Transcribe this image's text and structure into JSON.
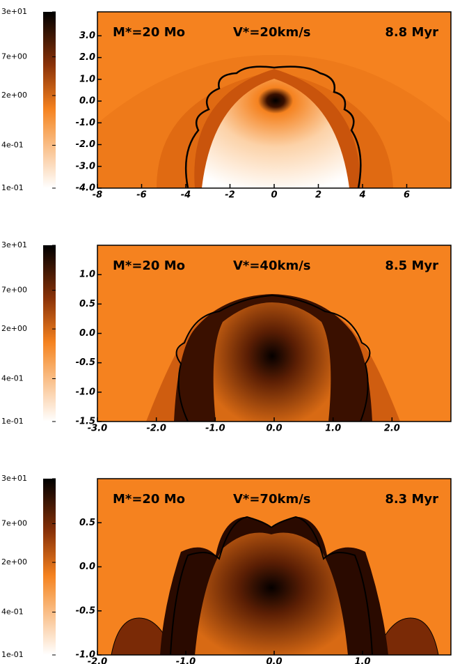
{
  "chart_data": [
    {
      "type": "image",
      "annotations": [
        "M*=20 Mo",
        "V*=20km/s",
        "8.8 Myr"
      ],
      "xlim": [
        -8,
        8
      ],
      "ylim": [
        -4,
        4.1
      ],
      "xticks": [
        -8,
        -6,
        -4,
        -2,
        0,
        2,
        4,
        6
      ],
      "yticks": [
        {
          "value": 3,
          "label": "3.0"
        },
        {
          "value": 2,
          "label": "2.0"
        },
        {
          "value": 1,
          "label": "1.0"
        },
        {
          "value": 0,
          "label": "0.0"
        },
        {
          "value": -1,
          "label": "-1.0"
        },
        {
          "value": -2,
          "label": "-2.0"
        },
        {
          "value": -3,
          "label": "-3.0"
        },
        {
          "value": -4,
          "label": "-4.0"
        }
      ],
      "clim": [
        0.1,
        30
      ],
      "cscale": "log",
      "cticks": [
        {
          "value": 30,
          "label": "3e+01"
        },
        {
          "value": 7,
          "label": "7e+00"
        },
        {
          "value": 2,
          "label": "2e+00"
        },
        {
          "value": 0.4,
          "label": "4e-01"
        },
        {
          "value": 0.1,
          "label": "1e-01"
        }
      ]
    },
    {
      "type": "image",
      "annotations": [
        "M*=20 Mo",
        "V*=40km/s",
        "8.5 Myr"
      ],
      "xlim": [
        -3,
        3
      ],
      "ylim": [
        -1.5,
        1.5
      ],
      "xticks": [
        {
          "value": -3,
          "label": "-3.0"
        },
        {
          "value": -2,
          "label": "-2.0"
        },
        {
          "value": -1,
          "label": "-1.0"
        },
        {
          "value": 0,
          "label": "0.0"
        },
        {
          "value": 1,
          "label": "1.0"
        },
        {
          "value": 2,
          "label": "2.0"
        }
      ],
      "yticks": [
        {
          "value": 1,
          "label": "1.0"
        },
        0.5,
        {
          "value": 0,
          "label": "0.0"
        },
        -0.5,
        {
          "value": -1,
          "label": "-1.0"
        },
        -1.5
      ],
      "clim": [
        0.1,
        30
      ],
      "cscale": "log",
      "cticks": [
        {
          "value": 30,
          "label": "3e+01"
        },
        {
          "value": 7,
          "label": "7e+00"
        },
        {
          "value": 2,
          "label": "2e+00"
        },
        {
          "value": 0.4,
          "label": "4e-01"
        },
        {
          "value": 0.1,
          "label": "1e-01"
        }
      ]
    },
    {
      "type": "image",
      "annotations": [
        "M*=20 Mo",
        "V*=70km/s",
        "8.3 Myr"
      ],
      "xlim": [
        -2,
        2
      ],
      "ylim": [
        -1,
        1
      ],
      "xticks": [
        {
          "value": -2,
          "label": "-2.0"
        },
        {
          "value": -1,
          "label": "-1.0"
        },
        {
          "value": 0,
          "label": "0.0"
        },
        {
          "value": 1,
          "label": "1.0"
        }
      ],
      "yticks": [
        0.5,
        {
          "value": 0,
          "label": "0.0"
        },
        -0.5,
        {
          "value": -1,
          "label": "-1.0"
        }
      ],
      "clim": [
        0.1,
        30
      ],
      "cscale": "log",
      "cticks": [
        {
          "value": 30,
          "label": "3e+01"
        },
        {
          "value": 7,
          "label": "7e+00"
        },
        {
          "value": 2,
          "label": "2e+00"
        },
        {
          "value": 0.4,
          "label": "4e-01"
        },
        {
          "value": 0.1,
          "label": "1e-01"
        }
      ]
    }
  ]
}
